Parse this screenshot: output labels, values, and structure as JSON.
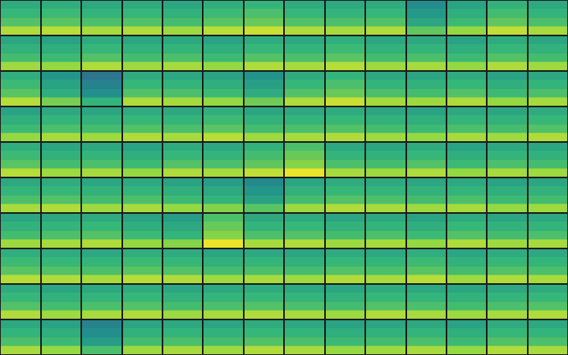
{
  "chart_data": {
    "type": "heatmap",
    "zlim": [
      30,
      80
    ],
    "tick_labels": false,
    "cells": [
      [
        51,
        52,
        50,
        51,
        49,
        52,
        54,
        51,
        50,
        51,
        41,
        48,
        53,
        50
      ],
      [
        55,
        56,
        54,
        55,
        53,
        56,
        58,
        55,
        54,
        55,
        45,
        52,
        57,
        54
      ],
      [
        59,
        60,
        58,
        59,
        57,
        60,
        62,
        59,
        58,
        59,
        49,
        56,
        61,
        58
      ],
      [
        71,
        72,
        70,
        71,
        69,
        72,
        74,
        71,
        70,
        71,
        61,
        68,
        73,
        70
      ],
      [
        49,
        48,
        51,
        49,
        50,
        48,
        51,
        50,
        52,
        49,
        50,
        48,
        51,
        49
      ],
      [
        53,
        52,
        55,
        53,
        54,
        52,
        55,
        54,
        56,
        53,
        54,
        52,
        55,
        53
      ],
      [
        57,
        56,
        59,
        57,
        58,
        56,
        59,
        58,
        60,
        57,
        58,
        56,
        59,
        57
      ],
      [
        69,
        68,
        71,
        69,
        70,
        68,
        71,
        70,
        72,
        69,
        70,
        68,
        71,
        69
      ],
      [
        52,
        44,
        34,
        51,
        50,
        48,
        43,
        51,
        54,
        50,
        49,
        51,
        48,
        50
      ],
      [
        56,
        48,
        38,
        55,
        54,
        52,
        47,
        55,
        58,
        54,
        53,
        55,
        52,
        54
      ],
      [
        60,
        52,
        42,
        59,
        58,
        56,
        51,
        59,
        62,
        58,
        57,
        59,
        56,
        58
      ],
      [
        72,
        64,
        54,
        71,
        70,
        68,
        63,
        71,
        74,
        70,
        69,
        71,
        68,
        70
      ],
      [
        48,
        50,
        49,
        51,
        50,
        52,
        49,
        50,
        51,
        49,
        48,
        50,
        49,
        51
      ],
      [
        52,
        54,
        53,
        55,
        54,
        56,
        53,
        54,
        55,
        53,
        52,
        54,
        53,
        55
      ],
      [
        56,
        58,
        57,
        59,
        58,
        60,
        57,
        58,
        59,
        57,
        56,
        58,
        57,
        59
      ],
      [
        68,
        70,
        69,
        71,
        70,
        72,
        69,
        70,
        71,
        69,
        68,
        70,
        69,
        71
      ],
      [
        52,
        49,
        50,
        48,
        51,
        50,
        53,
        58,
        50,
        49,
        51,
        48,
        50,
        49
      ],
      [
        56,
        53,
        54,
        52,
        55,
        54,
        57,
        62,
        54,
        53,
        55,
        52,
        54,
        53
      ],
      [
        60,
        57,
        58,
        56,
        59,
        58,
        61,
        66,
        58,
        57,
        59,
        56,
        58,
        57
      ],
      [
        72,
        69,
        70,
        68,
        71,
        70,
        73,
        78,
        70,
        69,
        71,
        68,
        70,
        69
      ],
      [
        50,
        51,
        49,
        50,
        48,
        46,
        40,
        49,
        51,
        50,
        49,
        50,
        48,
        49
      ],
      [
        54,
        55,
        53,
        54,
        52,
        50,
        44,
        53,
        55,
        54,
        53,
        54,
        52,
        53
      ],
      [
        58,
        59,
        57,
        58,
        56,
        54,
        48,
        57,
        59,
        58,
        57,
        58,
        56,
        57
      ],
      [
        70,
        71,
        69,
        70,
        68,
        66,
        60,
        69,
        71,
        70,
        69,
        70,
        68,
        69
      ],
      [
        49,
        50,
        51,
        48,
        46,
        58,
        50,
        51,
        49,
        50,
        48,
        51,
        49,
        50
      ],
      [
        53,
        54,
        55,
        52,
        50,
        62,
        54,
        55,
        53,
        54,
        52,
        55,
        53,
        54
      ],
      [
        57,
        58,
        59,
        56,
        54,
        66,
        58,
        59,
        57,
        58,
        56,
        59,
        57,
        58
      ],
      [
        69,
        70,
        71,
        68,
        66,
        78,
        70,
        71,
        69,
        70,
        68,
        71,
        69,
        70
      ],
      [
        52,
        51,
        50,
        52,
        51,
        49,
        50,
        49,
        51,
        50,
        52,
        49,
        51,
        50
      ],
      [
        56,
        55,
        54,
        56,
        55,
        53,
        54,
        53,
        55,
        54,
        56,
        53,
        55,
        54
      ],
      [
        60,
        59,
        58,
        60,
        59,
        57,
        58,
        57,
        59,
        58,
        60,
        57,
        59,
        58
      ],
      [
        72,
        71,
        70,
        72,
        71,
        69,
        70,
        69,
        71,
        70,
        72,
        69,
        71,
        70
      ],
      [
        51,
        49,
        50,
        51,
        49,
        50,
        51,
        50,
        49,
        51,
        50,
        49,
        50,
        51
      ],
      [
        55,
        53,
        54,
        55,
        53,
        54,
        55,
        54,
        53,
        55,
        54,
        53,
        54,
        55
      ],
      [
        59,
        57,
        58,
        59,
        57,
        58,
        59,
        58,
        57,
        59,
        58,
        57,
        58,
        59
      ],
      [
        71,
        69,
        70,
        71,
        69,
        70,
        71,
        70,
        69,
        71,
        70,
        69,
        70,
        71
      ],
      [
        50,
        48,
        38,
        49,
        50,
        49,
        51,
        50,
        48,
        49,
        50,
        48,
        51,
        50
      ],
      [
        54,
        52,
        42,
        53,
        54,
        53,
        55,
        54,
        52,
        53,
        54,
        52,
        55,
        54
      ],
      [
        58,
        56,
        46,
        57,
        58,
        57,
        59,
        58,
        56,
        57,
        58,
        56,
        59,
        58
      ],
      [
        70,
        68,
        58,
        69,
        70,
        69,
        71,
        70,
        68,
        69,
        70,
        68,
        71,
        70
      ]
    ]
  }
}
